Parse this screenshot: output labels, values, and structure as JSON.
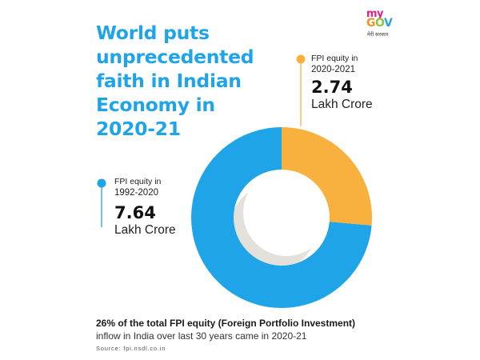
{
  "title_lines": [
    "World puts",
    "unprecedented",
    "faith in Indian",
    "Economy in",
    "2020-21"
  ],
  "logo": {
    "my": "my",
    "gov_letters": [
      "G",
      "O",
      "V"
    ],
    "tagline": "मेरी सरकार"
  },
  "colors": {
    "title": "#20a4e8",
    "series_1992": "#1fa4e8",
    "series_2020": "#f8b13f",
    "inner_shadow": "#e4e1dc"
  },
  "chart_data": {
    "type": "pie",
    "donut": true,
    "series": [
      {
        "name": "FPI equity in 1992-2020",
        "value": 7.64,
        "unit": "Lakh Crore",
        "color": "#1fa4e8"
      },
      {
        "name": "FPI equity in 2020-2021",
        "value": 2.74,
        "unit": "Lakh Crore",
        "color": "#f8b13f"
      }
    ]
  },
  "annotations": [
    {
      "label_line1": "FPI equity in",
      "label_line2": "2020-2021",
      "value": "2.74",
      "unit": "Lakh Crore"
    },
    {
      "label_line1": "FPI equity in",
      "label_line2": "1992-2020",
      "value": "7.64",
      "unit": "Lakh Crore"
    }
  ],
  "footer": {
    "bold": "26% of the total FPI equity (Foreign Portfolio Investment)",
    "text": "inflow in India over last 30 years came in 2020-21",
    "source": "Source: fpi.nsdl.co.in"
  }
}
